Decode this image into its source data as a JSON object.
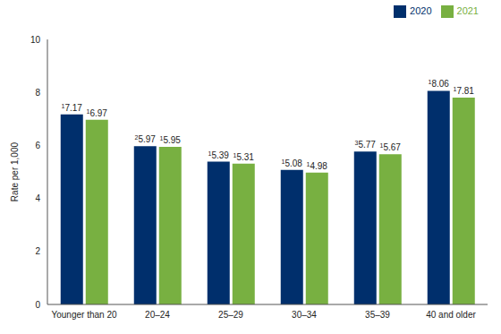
{
  "chart_data": {
    "type": "bar",
    "y_label": "Rate per 1,000",
    "categories": [
      "Younger than 20",
      "20–24",
      "25–29",
      "30–34",
      "35–39",
      "40 and older"
    ],
    "series": [
      {
        "name": "2020",
        "color": "#002f6c",
        "values": [
          7.17,
          5.97,
          5.39,
          5.08,
          5.77,
          8.06
        ],
        "footnotes": [
          "1",
          "2",
          "1",
          "1",
          "3",
          "1"
        ]
      },
      {
        "name": "2021",
        "color": "#78b041",
        "values": [
          6.97,
          5.95,
          5.31,
          4.98,
          5.67,
          7.81
        ],
        "footnotes": [
          "1",
          "1",
          "1",
          "1",
          "1",
          "1"
        ]
      }
    ],
    "ylim": [
      0,
      10
    ],
    "yticks": [
      0,
      2,
      4,
      6,
      8,
      10
    ],
    "grid": false,
    "data_labels": true,
    "legend": "top-right"
  }
}
